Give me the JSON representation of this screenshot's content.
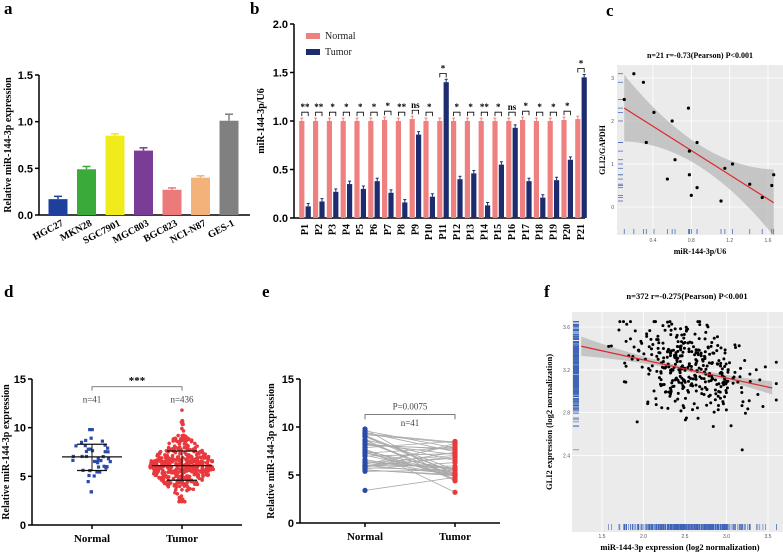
{
  "panel_labels": [
    "a",
    "b",
    "c",
    "d",
    "e",
    "f"
  ],
  "chart_data": [
    {
      "panel": "a",
      "type": "bar",
      "ylabel": "Relative miR-144-3p expression",
      "ylim": [
        0,
        1.5
      ],
      "yticks": [
        "0.0",
        "0.5",
        "1.0",
        "1.5"
      ],
      "categories": [
        "HGC27",
        "MKN28",
        "SGC7901",
        "MGC803",
        "BGC823",
        "NCI-N87",
        "GES-1"
      ],
      "values": [
        0.17,
        0.49,
        0.85,
        0.69,
        0.27,
        0.4,
        1.01
      ],
      "errors": [
        0.03,
        0.03,
        0.02,
        0.03,
        0.02,
        0.02,
        0.07
      ],
      "colors": [
        "#1f3f9c",
        "#3aaa3a",
        "#f0eb1a",
        "#7a3d96",
        "#ec7a7a",
        "#f2b27a",
        "#808080"
      ]
    },
    {
      "panel": "b",
      "type": "bar",
      "ylabel": "miR-144-3p/U6",
      "ylim": [
        0,
        2.0
      ],
      "yticks": [
        "0.0",
        "0.5",
        "1.0",
        "1.5",
        "2.0"
      ],
      "legend_position": "top-left",
      "categories": [
        "P1",
        "P2",
        "P3",
        "P4",
        "P5",
        "P6",
        "P7",
        "P8",
        "P9",
        "P10",
        "P11",
        "P12",
        "P13",
        "P14",
        "P15",
        "P16",
        "P17",
        "P18",
        "P19",
        "P20",
        "P21"
      ],
      "series": [
        {
          "name": "Normal",
          "color": "#ef8080",
          "values": [
            1.0,
            1.0,
            1.0,
            1.0,
            1.0,
            1.0,
            1.01,
            1.0,
            1.02,
            1.0,
            1.0,
            1.0,
            1.0,
            1.0,
            1.0,
            1.0,
            1.01,
            1.0,
            1.0,
            1.01,
            1.02
          ],
          "error": 0.03
        },
        {
          "name": "Tumor",
          "color": "#1c2c6e",
          "values": [
            0.12,
            0.17,
            0.27,
            0.35,
            0.3,
            0.38,
            0.26,
            0.16,
            0.86,
            0.22,
            1.4,
            0.4,
            0.46,
            0.13,
            0.55,
            0.93,
            0.38,
            0.21,
            0.39,
            0.6,
            1.45
          ],
          "error": 0.03
        }
      ],
      "significance": [
        "**",
        "**",
        "*",
        "*",
        "*",
        "*",
        "*",
        "**",
        "ns",
        "*",
        "*",
        "*",
        "*",
        "**",
        "*",
        "ns",
        "*",
        "*",
        "*",
        "*",
        "*"
      ]
    },
    {
      "panel": "c",
      "type": "scatter",
      "title": "n=21 r=-0.73(Pearson) P<0.001",
      "xlabel": "miR-144-3p/U6",
      "ylabel": "GLI2/GAPDH",
      "xticks": [
        "0.4",
        "0.8",
        "1.2",
        "1.6"
      ],
      "yticks": [
        "0",
        "1",
        "2",
        "3"
      ],
      "x": [
        0.2,
        0.3,
        0.1,
        0.41,
        0.77,
        0.6,
        0.33,
        0.86,
        0.78,
        0.63,
        1.23,
        1.15,
        0.78,
        1.66,
        0.55,
        0.86,
        1.41,
        1.64,
        0.8,
        1.11,
        1.54
      ],
      "y": [
        3.1,
        2.9,
        2.5,
        2.2,
        2.3,
        2.0,
        1.5,
        1.5,
        1.3,
        1.1,
        1.0,
        0.9,
        0.75,
        0.75,
        0.65,
        0.45,
        0.53,
        0.5,
        0.27,
        0.14,
        0.22
      ],
      "fit_line": {
        "x": [
          0.1,
          1.66
        ],
        "y": [
          2.3,
          0.1
        ],
        "color": "#e0262b"
      },
      "grid": true
    },
    {
      "panel": "d",
      "type": "scatter",
      "ylabel": "Relative miR-144-3p expression",
      "ylim": [
        0,
        15
      ],
      "yticks": [
        "0",
        "5",
        "10",
        "15"
      ],
      "categories": [
        "Normal",
        "Tumor"
      ],
      "groups": [
        {
          "name": "Normal",
          "n_label": "n=41",
          "n": 41,
          "mean": 7.0,
          "sd_low": 5.6,
          "sd_high": 8.3,
          "min": 3.4,
          "max": 9.8,
          "color": "#2a4aa8"
        },
        {
          "name": "Tumor",
          "n_label": "n=436",
          "n": 436,
          "mean": 6.1,
          "sd_low": 4.6,
          "sd_high": 7.6,
          "min": 2.4,
          "max": 11.8,
          "color": "#e8393d"
        }
      ],
      "significance": "***"
    },
    {
      "panel": "e",
      "type": "line",
      "ylabel": "Relative miR-144-3p expression",
      "ylim": [
        0,
        15
      ],
      "yticks": [
        "0",
        "5",
        "10",
        "15"
      ],
      "categories": [
        "Normal",
        "Tumor"
      ],
      "p_label": "P=0.0075",
      "n_label": "n=41",
      "pairs": 41,
      "normal_range": [
        3.4,
        9.8
      ],
      "tumor_range": [
        3.2,
        8.5
      ],
      "colors": {
        "normal": "#2a4aa8",
        "tumor": "#e8393d",
        "line": "#a9a9a9"
      }
    },
    {
      "panel": "f",
      "type": "scatter",
      "title": "n=372 r=-0.275(Pearson) P<0.001",
      "xlabel": "miR-144-3p expression (log2 normalization)",
      "ylabel": "GLI2 expression (log2 normalization)",
      "xticks": [
        "1.5",
        "2.0",
        "2.5",
        "3.0",
        "3.5"
      ],
      "yticks": [
        "2.4",
        "2.8",
        "3.2",
        "3.6"
      ],
      "n": 372,
      "x_range": [
        1.2,
        3.6
      ],
      "y_range": [
        2.25,
        3.65
      ],
      "fit_line": {
        "x": [
          1.25,
          3.55
        ],
        "y": [
          3.42,
          3.03
        ],
        "color": "#e0262b"
      },
      "grid": true
    }
  ]
}
